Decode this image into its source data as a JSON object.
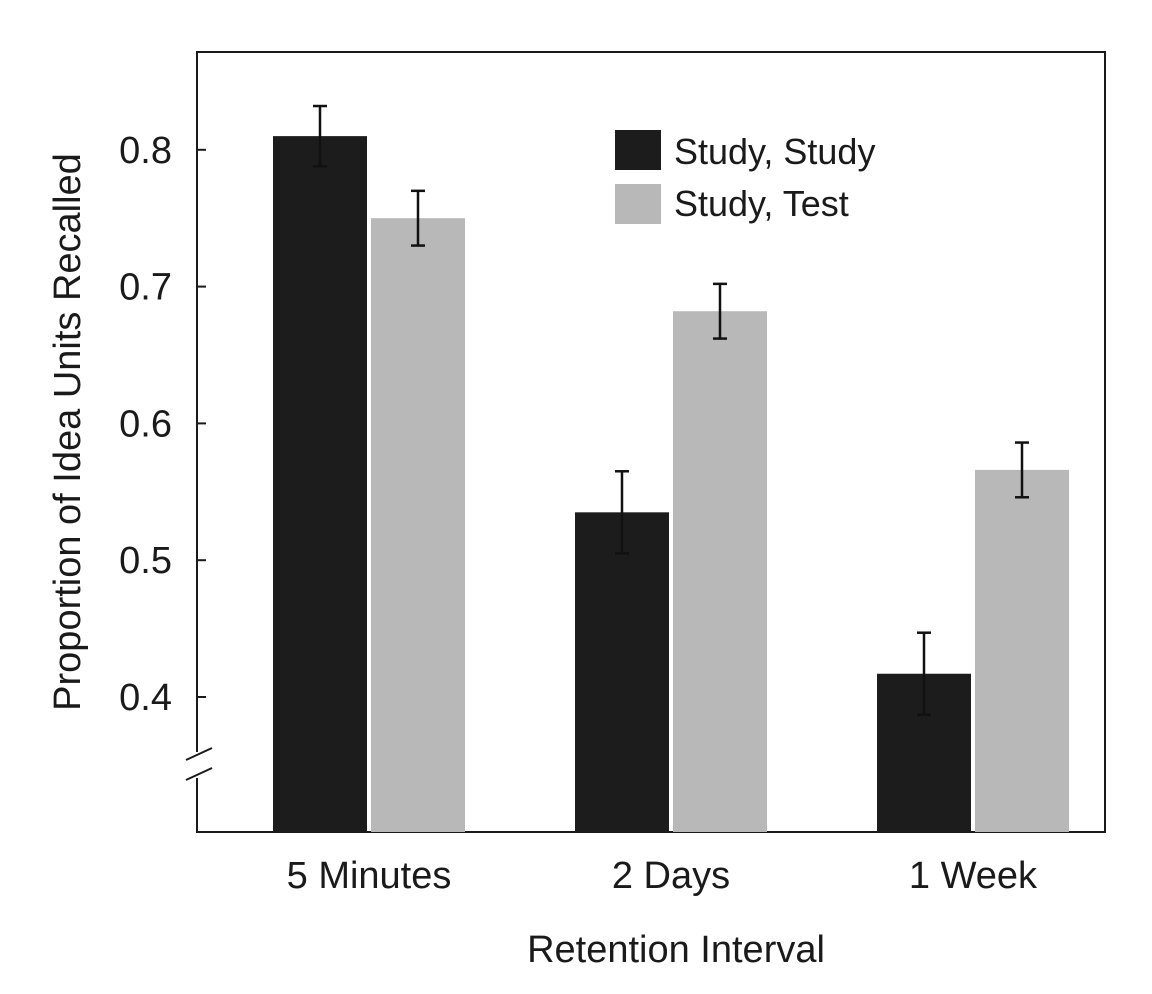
{
  "chart_data": {
    "type": "bar",
    "title": "",
    "xlabel": "Retention Interval",
    "ylabel": "Proportion of Idea Units Recalled",
    "categories": [
      "5 Minutes",
      "2 Days",
      "1 Week"
    ],
    "series": [
      {
        "name": "Study, Study",
        "color": "#1c1c1c",
        "values": [
          0.81,
          0.535,
          0.417
        ],
        "error": [
          0.022,
          0.03,
          0.03
        ]
      },
      {
        "name": "Study, Test",
        "color": "#b8b8b8",
        "values": [
          0.75,
          0.682,
          0.566
        ],
        "error": [
          0.02,
          0.02,
          0.02
        ]
      }
    ],
    "ylim": [
      0.3,
      0.87
    ],
    "yticks": [
      "0.4",
      "0.5",
      "0.6",
      "0.7",
      "0.8"
    ],
    "axis_break": true,
    "legend_position": "top-right",
    "grid": false
  }
}
